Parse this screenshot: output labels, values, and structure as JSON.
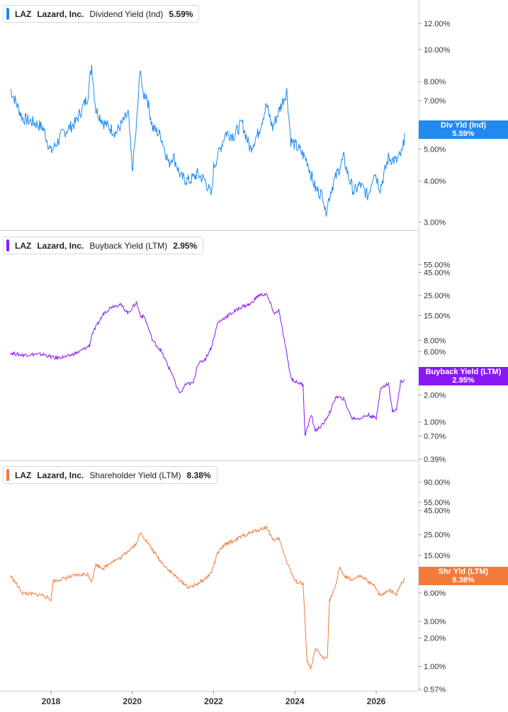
{
  "ticker": "LAZ",
  "company": "Lazard, Inc.",
  "x_axis": {
    "tick_labels": [
      "2018",
      "2020",
      "2022",
      "2024",
      "2026"
    ]
  },
  "chart_data": [
    {
      "type": "line",
      "metric": "Dividend Yield (Ind)",
      "current_value": "5.59%",
      "badge_label": "Div Yld (Ind)",
      "color": "#2189f0",
      "y_scale": "log",
      "ylim": [
        2.95,
        13.0
      ],
      "y_ticks": [
        3,
        4,
        5,
        6,
        7,
        8,
        10,
        12
      ],
      "y_tick_labels": [
        "3.00%",
        "4.00%",
        "5.00%",
        "6.00%",
        "7.00%",
        "8.00%",
        "10.00%",
        "12.00%"
      ],
      "x": [
        2017.0,
        2017.3,
        2017.6,
        2017.8,
        2018.0,
        2018.3,
        2018.6,
        2018.9,
        2019.0,
        2019.1,
        2019.3,
        2019.6,
        2019.9,
        2020.0,
        2020.1,
        2020.2,
        2020.25,
        2020.35,
        2020.5,
        2020.7,
        2020.9,
        2021.0,
        2021.2,
        2021.4,
        2021.6,
        2021.8,
        2021.95,
        2022.0,
        2022.3,
        2022.5,
        2022.7,
        2022.9,
        2023.1,
        2023.3,
        2023.45,
        2023.6,
        2023.8,
        2023.9,
        2024.1,
        2024.3,
        2024.5,
        2024.7,
        2024.75,
        2024.9,
        2025.1,
        2025.2,
        2025.3,
        2025.45,
        2025.6,
        2025.8,
        2025.95,
        2026.1,
        2026.3,
        2026.5,
        2026.65,
        2026.7
      ],
      "values": [
        7.6,
        6.2,
        6.0,
        5.8,
        4.9,
        5.6,
        6.0,
        7.2,
        9.0,
        6.6,
        6.0,
        5.6,
        6.4,
        4.3,
        5.8,
        9.0,
        7.3,
        7.3,
        5.8,
        5.5,
        4.5,
        4.8,
        4.1,
        4.0,
        4.2,
        4.0,
        3.6,
        4.4,
        5.6,
        5.5,
        6.0,
        5.0,
        5.6,
        6.8,
        5.8,
        6.5,
        7.5,
        5.3,
        5.0,
        4.6,
        3.8,
        3.6,
        3.2,
        3.8,
        4.4,
        4.7,
        4.2,
        3.7,
        3.9,
        3.6,
        4.3,
        3.8,
        4.7,
        4.6,
        4.9,
        5.59
      ]
    },
    {
      "type": "line",
      "metric": "Buyback Yield (LTM)",
      "current_value": "2.95%",
      "badge_label": "Buyback Yield (LTM)",
      "color": "#8a18f5",
      "y_scale": "log",
      "ylim": [
        0.39,
        70.0
      ],
      "y_ticks": [
        0.39,
        0.7,
        1.0,
        2.0,
        6.0,
        8.0,
        15.0,
        25.0,
        45.0,
        55.0
      ],
      "y_tick_labels": [
        "0.39%",
        "0.70%",
        "1.00%",
        "2.00%",
        "6.00%",
        "8.00%",
        "15.00%",
        "25.00%",
        "45.00%",
        "55.00%"
      ],
      "x": [
        2017.0,
        2017.3,
        2017.6,
        2017.8,
        2018.1,
        2018.4,
        2018.7,
        2018.95,
        2019.0,
        2019.3,
        2019.5,
        2019.7,
        2019.9,
        2020.1,
        2020.2,
        2020.3,
        2020.5,
        2020.7,
        2020.9,
        2021.0,
        2021.1,
        2021.2,
        2021.3,
        2021.5,
        2021.6,
        2021.8,
        2021.95,
        2022.1,
        2022.3,
        2022.5,
        2022.7,
        2022.9,
        2023.1,
        2023.3,
        2023.5,
        2023.6,
        2023.75,
        2023.9,
        2024.0,
        2024.2,
        2024.25,
        2024.4,
        2024.5,
        2024.7,
        2024.9,
        2025.0,
        2025.2,
        2025.4,
        2025.6,
        2025.8,
        2026.0,
        2026.1,
        2026.3,
        2026.4,
        2026.5,
        2026.6,
        2026.7
      ],
      "values": [
        5.8,
        5.5,
        5.6,
        5.6,
        5.1,
        5.3,
        6.0,
        7.0,
        9.2,
        16.0,
        19.0,
        20.0,
        16.0,
        21.0,
        15.0,
        14.5,
        8.0,
        6.2,
        4.0,
        3.3,
        2.3,
        2.1,
        2.6,
        2.7,
        4.3,
        5.0,
        6.8,
        12.5,
        14.5,
        16.5,
        19.0,
        20.0,
        25.0,
        26.0,
        15.5,
        17.5,
        7.5,
        3.1,
        2.8,
        2.6,
        0.72,
        1.2,
        0.8,
        0.95,
        1.4,
        1.9,
        1.8,
        1.1,
        1.1,
        1.2,
        1.1,
        2.3,
        2.7,
        1.3,
        1.4,
        2.8,
        2.95
      ]
    },
    {
      "type": "line",
      "metric": "Shareholder Yield (LTM)",
      "current_value": "8.38%",
      "badge_label": "Shr Yld (LTM)",
      "color": "#f27a3a",
      "y_scale": "log",
      "ylim": [
        0.57,
        110.0
      ],
      "y_ticks": [
        0.57,
        1.0,
        2.0,
        3.0,
        6.0,
        8.0,
        15.0,
        25.0,
        45.0,
        55.0,
        90.0
      ],
      "y_tick_labels": [
        "0.57%",
        "1.00%",
        "2.00%",
        "3.00%",
        "6.00%",
        "8.00%",
        "15.00%",
        "25.00%",
        "45.00%",
        "55.00%",
        "90.00%"
      ],
      "x": [
        2017.0,
        2017.3,
        2017.6,
        2017.8,
        2018.0,
        2018.05,
        2018.3,
        2018.6,
        2018.9,
        2019.0,
        2019.1,
        2019.3,
        2019.5,
        2019.7,
        2019.9,
        2020.1,
        2020.2,
        2020.3,
        2020.5,
        2020.7,
        2020.9,
        2021.0,
        2021.2,
        2021.4,
        2021.6,
        2021.8,
        2021.95,
        2022.1,
        2022.3,
        2022.5,
        2022.7,
        2022.9,
        2023.1,
        2023.3,
        2023.5,
        2023.6,
        2023.8,
        2024.0,
        2024.2,
        2024.3,
        2024.4,
        2024.5,
        2024.6,
        2024.7,
        2024.8,
        2024.85,
        2025.0,
        2025.1,
        2025.2,
        2025.4,
        2025.6,
        2025.8,
        2026.0,
        2026.1,
        2026.3,
        2026.5,
        2026.6,
        2026.7
      ],
      "values": [
        9.2,
        6.0,
        5.8,
        5.7,
        5.1,
        8.0,
        8.5,
        9.2,
        9.5,
        8.0,
        12.0,
        11.0,
        13.0,
        14.0,
        17.0,
        20.0,
        26.0,
        23.0,
        17.0,
        13.0,
        10.5,
        9.5,
        8.0,
        6.8,
        7.5,
        8.5,
        10.0,
        16.0,
        20.0,
        21.5,
        24.0,
        26.0,
        28.0,
        30.0,
        21.0,
        23.0,
        13.0,
        8.0,
        7.5,
        1.1,
        0.95,
        1.5,
        1.4,
        1.2,
        1.3,
        5.0,
        7.0,
        11.5,
        9.0,
        8.3,
        9.0,
        8.0,
        6.8,
        5.6,
        6.5,
        5.8,
        7.5,
        8.38
      ]
    }
  ]
}
